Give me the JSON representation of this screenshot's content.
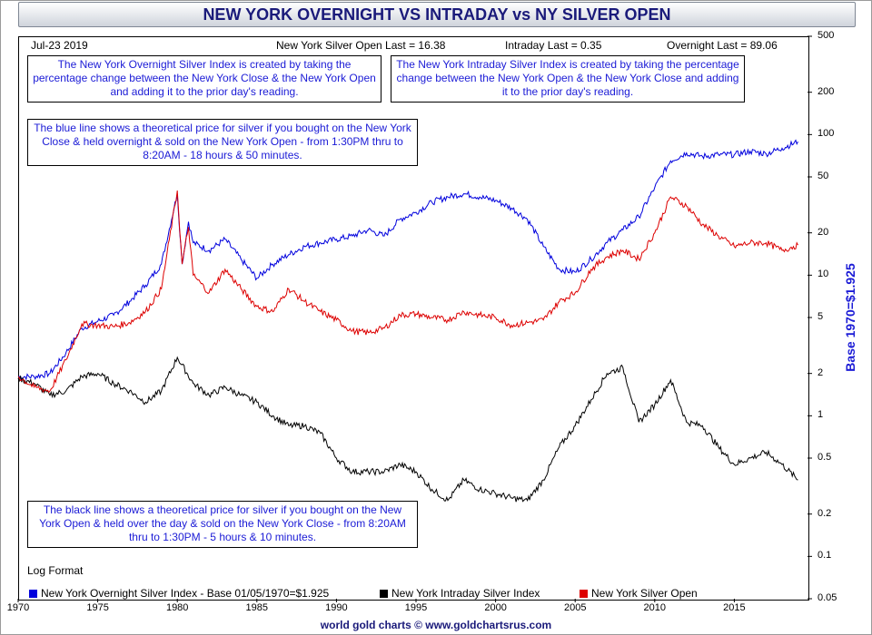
{
  "title": "NEW YORK OVERNIGHT VS INTRADAY vs NY SILVER OPEN",
  "header": {
    "date": "Jul-23  2019",
    "silver_open_last": "New York Silver Open Last = 16.38",
    "intraday_last": "Intraday Last = 0.35",
    "overnight_last": "Overnight Last = 89.06"
  },
  "notes": {
    "overnight_desc": "The New York Overnight Silver Index is created by taking the percentage change between the New York Close & the New York Open and adding it to the prior day's reading.",
    "intraday_desc": "The New York Intraday Silver Index is created by taking the percentage change between the New York Open & the New York Close and adding it to the prior day's reading.",
    "blue_line_desc": "The blue line shows a theoretical price for silver if you bought on the New York Close & held overnight & sold on the New York Open - from 1:30PM thru to 8:20AM - 18 hours & 50 minutes.",
    "black_line_desc": "The black line shows a theoretical price for silver if you bought on the New York Open & held over the day & sold on the New York Close - from 8:20AM thru to 1:30PM - 5 hours & 10 minutes."
  },
  "log_format": "Log Format",
  "footer": "world gold charts © www.goldchartsrus.com",
  "right_axis_label": "Base 1970=$1.925",
  "colors": {
    "overnight": "#0000dd",
    "intraday": "#000000",
    "silver": "#dd0000",
    "title_text": "#1a1a7a"
  },
  "chart_data": {
    "type": "line",
    "title": "NEW YORK OVERNIGHT VS INTRADAY vs NY SILVER OPEN",
    "xlabel": "",
    "ylabel": "Base 1970=$1.925",
    "log_scale_y": true,
    "xlim": [
      1970,
      2019.6
    ],
    "ylim": [
      0.05,
      500
    ],
    "x_ticks": [
      1970,
      1975,
      1980,
      1985,
      1990,
      1995,
      2000,
      2005,
      2010,
      2015
    ],
    "y_ticks": [
      500,
      200,
      100,
      50,
      20,
      10,
      5,
      2,
      1,
      0.5,
      0.2,
      0.1,
      0.05
    ],
    "grid": false,
    "legend_position": "bottom",
    "series": [
      {
        "name": "New York Overnight Silver Index - Base 01/05/1970=$1.925",
        "color": "#0000dd",
        "points": [
          [
            1970,
            1.9
          ],
          [
            1971,
            1.9
          ],
          [
            1972,
            2.0
          ],
          [
            1973,
            2.8
          ],
          [
            1974,
            4.2
          ],
          [
            1975,
            4.7
          ],
          [
            1976,
            5.2
          ],
          [
            1977,
            6.5
          ],
          [
            1978,
            8.5
          ],
          [
            1979,
            12
          ],
          [
            1980,
            38
          ],
          [
            1980.3,
            12
          ],
          [
            1980.7,
            24
          ],
          [
            1981,
            17
          ],
          [
            1982,
            15
          ],
          [
            1983,
            18
          ],
          [
            1984,
            13
          ],
          [
            1985,
            9.5
          ],
          [
            1986,
            12
          ],
          [
            1987,
            14
          ],
          [
            1988,
            16
          ],
          [
            1989,
            17
          ],
          [
            1990,
            18
          ],
          [
            1991,
            19
          ],
          [
            1992,
            21
          ],
          [
            1993,
            19
          ],
          [
            1994,
            25
          ],
          [
            1995,
            28
          ],
          [
            1996,
            33
          ],
          [
            1997,
            36
          ],
          [
            1998,
            38
          ],
          [
            1999,
            36
          ],
          [
            2000,
            34
          ],
          [
            2001,
            30
          ],
          [
            2002,
            25
          ],
          [
            2003,
            16
          ],
          [
            2004,
            11
          ],
          [
            2005,
            10.5
          ],
          [
            2006,
            13
          ],
          [
            2007,
            17
          ],
          [
            2008,
            21
          ],
          [
            2009,
            26
          ],
          [
            2010,
            42
          ],
          [
            2011,
            65
          ],
          [
            2012,
            74
          ],
          [
            2013,
            70
          ],
          [
            2014,
            72
          ],
          [
            2015,
            72
          ],
          [
            2016,
            76
          ],
          [
            2017,
            73
          ],
          [
            2018,
            80
          ],
          [
            2019,
            89
          ]
        ]
      },
      {
        "name": "New York Intraday Silver Index",
        "color": "#000000",
        "points": [
          [
            1970,
            1.85
          ],
          [
            1971,
            1.7
          ],
          [
            1972,
            1.4
          ],
          [
            1973,
            1.5
          ],
          [
            1974,
            1.9
          ],
          [
            1975,
            2.0
          ],
          [
            1976,
            1.7
          ],
          [
            1977,
            1.5
          ],
          [
            1978,
            1.25
          ],
          [
            1979,
            1.5
          ],
          [
            1980,
            2.6
          ],
          [
            1981,
            1.7
          ],
          [
            1982,
            1.4
          ],
          [
            1983,
            1.6
          ],
          [
            1984,
            1.4
          ],
          [
            1985,
            1.25
          ],
          [
            1986,
            1.0
          ],
          [
            1987,
            0.85
          ],
          [
            1988,
            0.85
          ],
          [
            1989,
            0.75
          ],
          [
            1990,
            0.5
          ],
          [
            1991,
            0.4
          ],
          [
            1992,
            0.4
          ],
          [
            1993,
            0.4
          ],
          [
            1994,
            0.45
          ],
          [
            1995,
            0.4
          ],
          [
            1996,
            0.3
          ],
          [
            1997,
            0.25
          ],
          [
            1998,
            0.35
          ],
          [
            1999,
            0.3
          ],
          [
            2000,
            0.28
          ],
          [
            2001,
            0.26
          ],
          [
            2002,
            0.25
          ],
          [
            2003,
            0.35
          ],
          [
            2004,
            0.6
          ],
          [
            2005,
            0.85
          ],
          [
            2006,
            1.3
          ],
          [
            2007,
            2.0
          ],
          [
            2008,
            2.2
          ],
          [
            2009,
            0.9
          ],
          [
            2010,
            1.2
          ],
          [
            2011,
            1.8
          ],
          [
            2012,
            0.9
          ],
          [
            2013,
            0.85
          ],
          [
            2014,
            0.6
          ],
          [
            2015,
            0.45
          ],
          [
            2016,
            0.5
          ],
          [
            2017,
            0.55
          ],
          [
            2018,
            0.45
          ],
          [
            2019,
            0.35
          ]
        ]
      },
      {
        "name": "New York Silver Open",
        "color": "#dd0000",
        "points": [
          [
            1970,
            1.9
          ],
          [
            1971,
            1.6
          ],
          [
            1972,
            1.5
          ],
          [
            1973,
            2.5
          ],
          [
            1974,
            4.5
          ],
          [
            1975,
            4.4
          ],
          [
            1976,
            4.3
          ],
          [
            1977,
            4.6
          ],
          [
            1978,
            5.5
          ],
          [
            1979,
            8
          ],
          [
            1980,
            40
          ],
          [
            1980.3,
            12
          ],
          [
            1980.7,
            22
          ],
          [
            1981,
            10
          ],
          [
            1982,
            7.5
          ],
          [
            1983,
            11
          ],
          [
            1984,
            8
          ],
          [
            1985,
            6.0
          ],
          [
            1986,
            5.5
          ],
          [
            1987,
            8
          ],
          [
            1988,
            6.5
          ],
          [
            1989,
            5.5
          ],
          [
            1990,
            4.8
          ],
          [
            1991,
            4.0
          ],
          [
            1992,
            3.9
          ],
          [
            1993,
            4.2
          ],
          [
            1994,
            5.2
          ],
          [
            1995,
            5.3
          ],
          [
            1996,
            5.0
          ],
          [
            1997,
            4.8
          ],
          [
            1998,
            5.5
          ],
          [
            1999,
            5.2
          ],
          [
            2000,
            5.0
          ],
          [
            2001,
            4.4
          ],
          [
            2002,
            4.6
          ],
          [
            2003,
            4.8
          ],
          [
            2004,
            6.5
          ],
          [
            2005,
            7.5
          ],
          [
            2006,
            11
          ],
          [
            2007,
            13.5
          ],
          [
            2008,
            15
          ],
          [
            2009,
            13
          ],
          [
            2010,
            20
          ],
          [
            2011,
            36
          ],
          [
            2012,
            31
          ],
          [
            2013,
            23
          ],
          [
            2014,
            19
          ],
          [
            2015,
            16
          ],
          [
            2016,
            17
          ],
          [
            2017,
            17
          ],
          [
            2018,
            15
          ],
          [
            2019,
            16.38
          ]
        ]
      }
    ]
  }
}
